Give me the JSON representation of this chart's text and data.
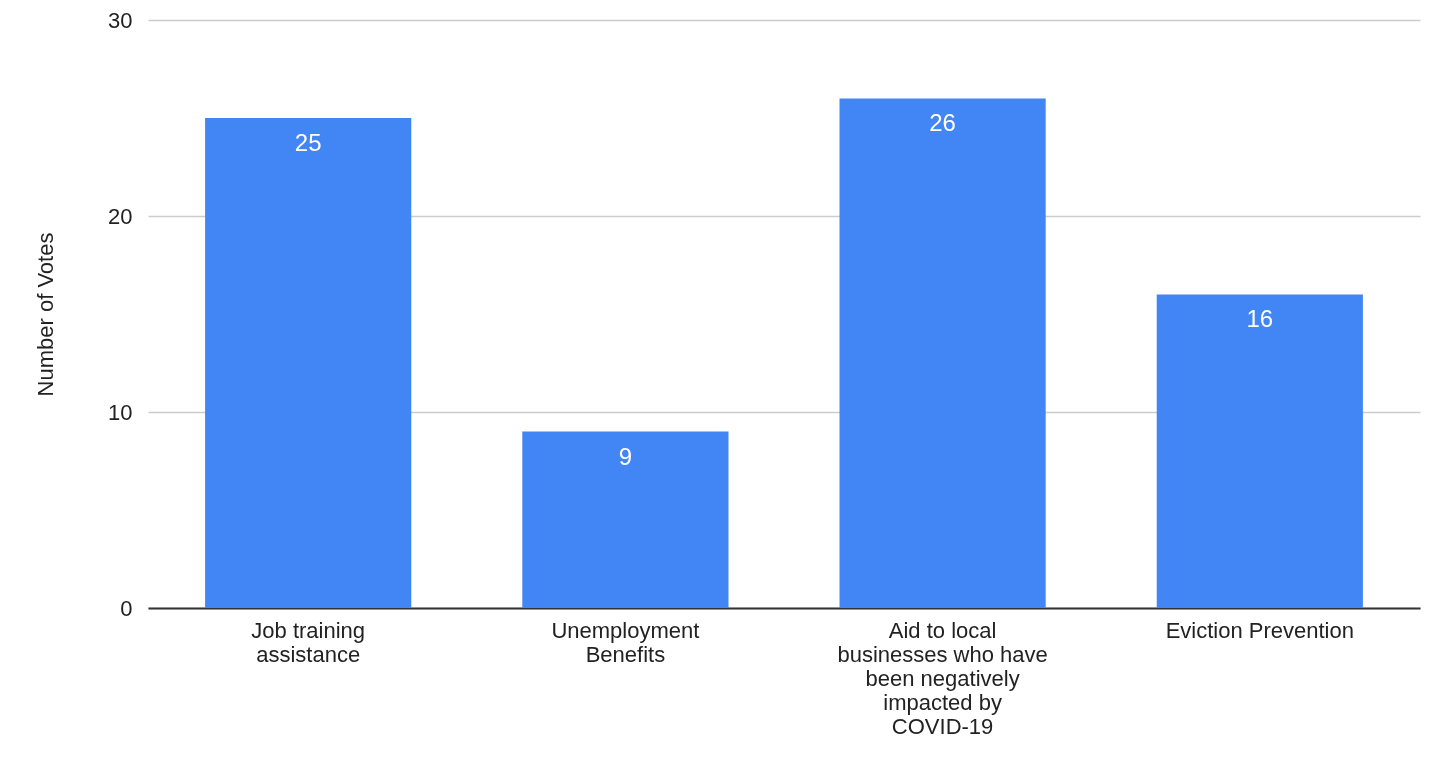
{
  "chart_data": {
    "type": "bar",
    "ylabel": "Number of Votes",
    "categories": [
      "Job training assistance",
      "Unemployment Benefits",
      "Aid to local businesses who have been negatively impacted by COVID-19",
      "Eviction Prevention"
    ],
    "values": [
      25,
      9,
      26,
      16
    ],
    "color": "#4285f4",
    "ylim": [
      0,
      30
    ],
    "yticks": [
      0,
      10,
      20,
      30
    ],
    "grid": "y",
    "data_labels": true
  }
}
